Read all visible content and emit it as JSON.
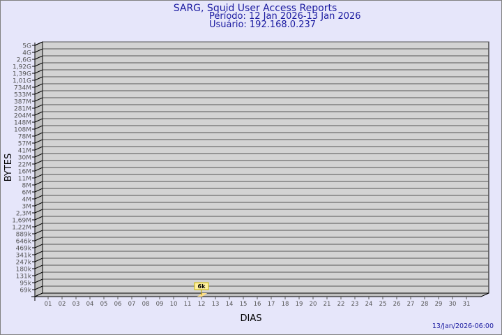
{
  "chart_data": {
    "type": "bar",
    "title": "SARG, Squid User Access Reports",
    "subtitle_period": "Período: 12 Jan 2026-13 Jan 2026",
    "subtitle_user": "Usuário: 192.168.0.237",
    "xlabel": "DIAS",
    "ylabel": "BYTES",
    "y_scale": "log",
    "y_tick_labels": [
      "5G",
      "4G",
      "2,6G",
      "1,92G",
      "1,39G",
      "1,01G",
      "734M",
      "533M",
      "387M",
      "281M",
      "204M",
      "148M",
      "108M",
      "78M",
      "57M",
      "41M",
      "30M",
      "22M",
      "16M",
      "11M",
      "8M",
      "6M",
      "4M",
      "3M",
      "2,3M",
      "1,69M",
      "1,22M",
      "889k",
      "646k",
      "469k",
      "341k",
      "247k",
      "180k",
      "131k",
      "95k",
      "69k"
    ],
    "categories": [
      "01",
      "02",
      "03",
      "04",
      "05",
      "06",
      "07",
      "08",
      "09",
      "10",
      "11",
      "12",
      "13",
      "14",
      "15",
      "16",
      "17",
      "18",
      "19",
      "20",
      "21",
      "22",
      "23",
      "24",
      "25",
      "26",
      "27",
      "28",
      "29",
      "30",
      "31"
    ],
    "series": [
      {
        "values": [
          null,
          null,
          null,
          null,
          null,
          null,
          null,
          null,
          null,
          null,
          null,
          6000,
          null,
          null,
          null,
          null,
          null,
          null,
          null,
          null,
          null,
          null,
          null,
          null,
          null,
          null,
          null,
          null,
          null,
          null,
          null
        ]
      }
    ],
    "data_labels": [
      {
        "category": "12",
        "text": "6k"
      }
    ],
    "grid": true,
    "timestamp": "13/Jan/2026-06:00",
    "colors": {
      "background": "#e6e6fa",
      "plot": "#d3d3d3",
      "side": "#c0c0c0",
      "title": "#1a1aa0",
      "bar": "#ffe08a",
      "label_box": "#fff0a0"
    }
  }
}
